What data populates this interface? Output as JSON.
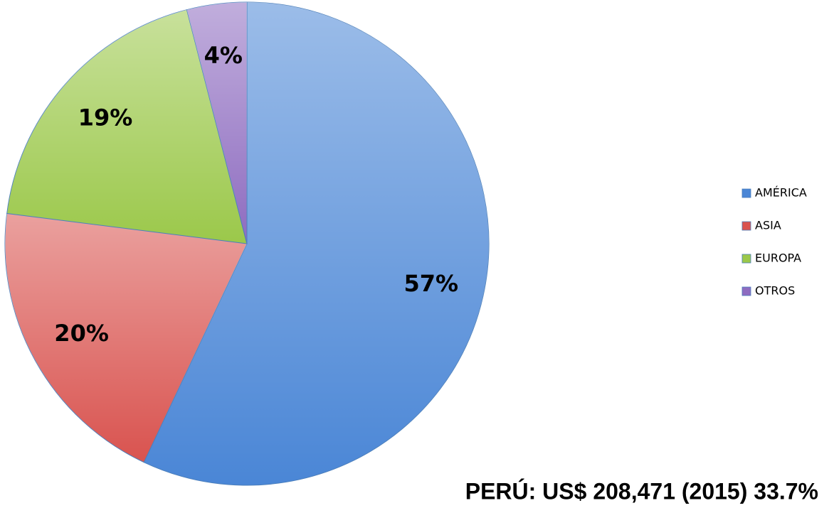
{
  "chart_data": {
    "type": "pie",
    "categories": [
      "AMÉRICA",
      "ASIA",
      "EUROPA",
      "OTROS"
    ],
    "values": [
      57,
      20,
      19,
      4
    ],
    "value_labels": [
      "57%",
      "20%",
      "19%",
      "4%"
    ],
    "colors": [
      "#4a86d6",
      "#d9534f",
      "#9bc84a",
      "#8e6cc0"
    ],
    "legend": "right",
    "annotation": "PERÚ: US$ 208,471 (2015) 33.7%"
  }
}
